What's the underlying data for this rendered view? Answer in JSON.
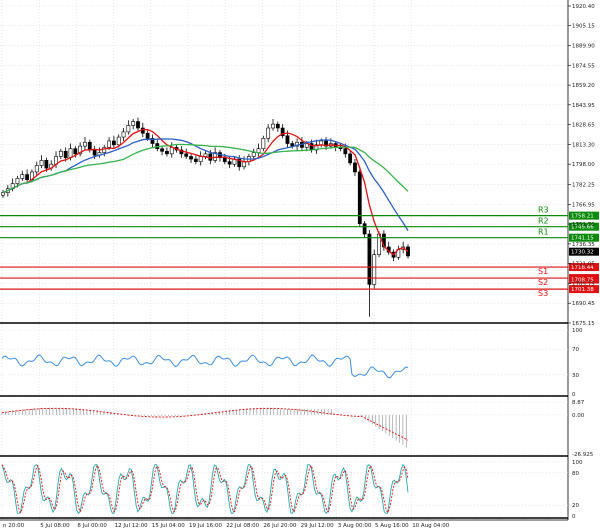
{
  "colors": {
    "resistance": "#0a8a0a",
    "support": "#e01010",
    "ema_fast": "#e01010",
    "ema_mid": "#2b5fc4",
    "ema_slow": "#37b24d",
    "rsi": "#3d8fe0",
    "macd_hist": "#999999",
    "macd_signal": "#e01010",
    "stoch_k": "#28a7a7",
    "stoch_d": "#e01010",
    "candle": "#000000",
    "grid": "#d9d9d9"
  },
  "chart_data": [
    {
      "type": "line",
      "panel": "price",
      "y_ticks": [
        "1920.40",
        "1905.15",
        "1889.90",
        "1874.55",
        "1859.20",
        "1843.95",
        "1828.65",
        "1813.30",
        "1798.00",
        "1782.25",
        "1766.95",
        "1751.70",
        "1736.35",
        "1721.05",
        "1705.75",
        "1690.45",
        "1675.15"
      ],
      "ylim": [
        1675.15,
        1920.4
      ],
      "x_labels": [
        "n 20:00",
        "5 Jul 08:00",
        "8 Jul 00:00",
        "12 Jul 12:00",
        "15 Jul 04:00",
        "19 Jul 16:00",
        "22 Jul 08:00",
        "26 Jul 20:00",
        "29 Jul 12:00",
        "3 Aug 00:00",
        "5 Aug 16:00",
        "10 Aug 04:00"
      ],
      "ohlc_close": [
        1776,
        1779,
        1783,
        1787,
        1790,
        1786,
        1792,
        1797,
        1801,
        1795,
        1798,
        1804,
        1808,
        1803,
        1810,
        1806,
        1812,
        1815,
        1809,
        1805,
        1807,
        1811,
        1816,
        1813,
        1819,
        1823,
        1828,
        1831,
        1826,
        1822,
        1818,
        1814,
        1810,
        1808,
        1806,
        1811,
        1809,
        1806,
        1804,
        1802,
        1800,
        1804,
        1806,
        1801,
        1807,
        1803,
        1800,
        1798,
        1802,
        1796,
        1800,
        1804,
        1807,
        1810,
        1818,
        1826,
        1829,
        1826,
        1820,
        1814,
        1812,
        1815,
        1811,
        1814,
        1809,
        1813,
        1816,
        1812,
        1814,
        1811,
        1810,
        1806,
        1799,
        1792,
        1752,
        1744,
        1705,
        1728,
        1744,
        1734,
        1730,
        1726,
        1732,
        1734,
        1727
      ],
      "levels": [
        {
          "name": "R3",
          "label": "1758.21",
          "value": 1758.21,
          "kind": "resistance"
        },
        {
          "name": "R2",
          "label": "1749.66",
          "value": 1749.66,
          "kind": "resistance"
        },
        {
          "name": "R1",
          "label": "1741.15",
          "value": 1741.15,
          "kind": "resistance"
        },
        {
          "name": "S1",
          "label": "1718.44",
          "value": 1718.44,
          "kind": "support"
        },
        {
          "name": "S2",
          "label": "1709.92",
          "value": 1709.92,
          "kind": "support"
        },
        {
          "name": "S3",
          "label": "1701.38",
          "value": 1701.38,
          "kind": "support"
        }
      ],
      "price_tags": [
        {
          "label": "1730.32",
          "value": 1730.32,
          "kind": "price"
        },
        {
          "label": "1708.75",
          "value": 1708.75,
          "kind": "support"
        }
      ]
    },
    {
      "type": "line",
      "panel": "rsi",
      "y_ticks": [
        "100",
        "70",
        "30",
        "0"
      ],
      "ylim": [
        0,
        100
      ]
    },
    {
      "type": "line",
      "panel": "macd",
      "y_ticks": [
        "8.87",
        "0.00",
        "-26.925"
      ],
      "ylim": [
        -26.925,
        8.87
      ]
    },
    {
      "type": "line",
      "panel": "stochastic",
      "y_ticks": [
        "100",
        "80",
        "20",
        "0"
      ],
      "ylim": [
        0,
        100
      ]
    }
  ]
}
